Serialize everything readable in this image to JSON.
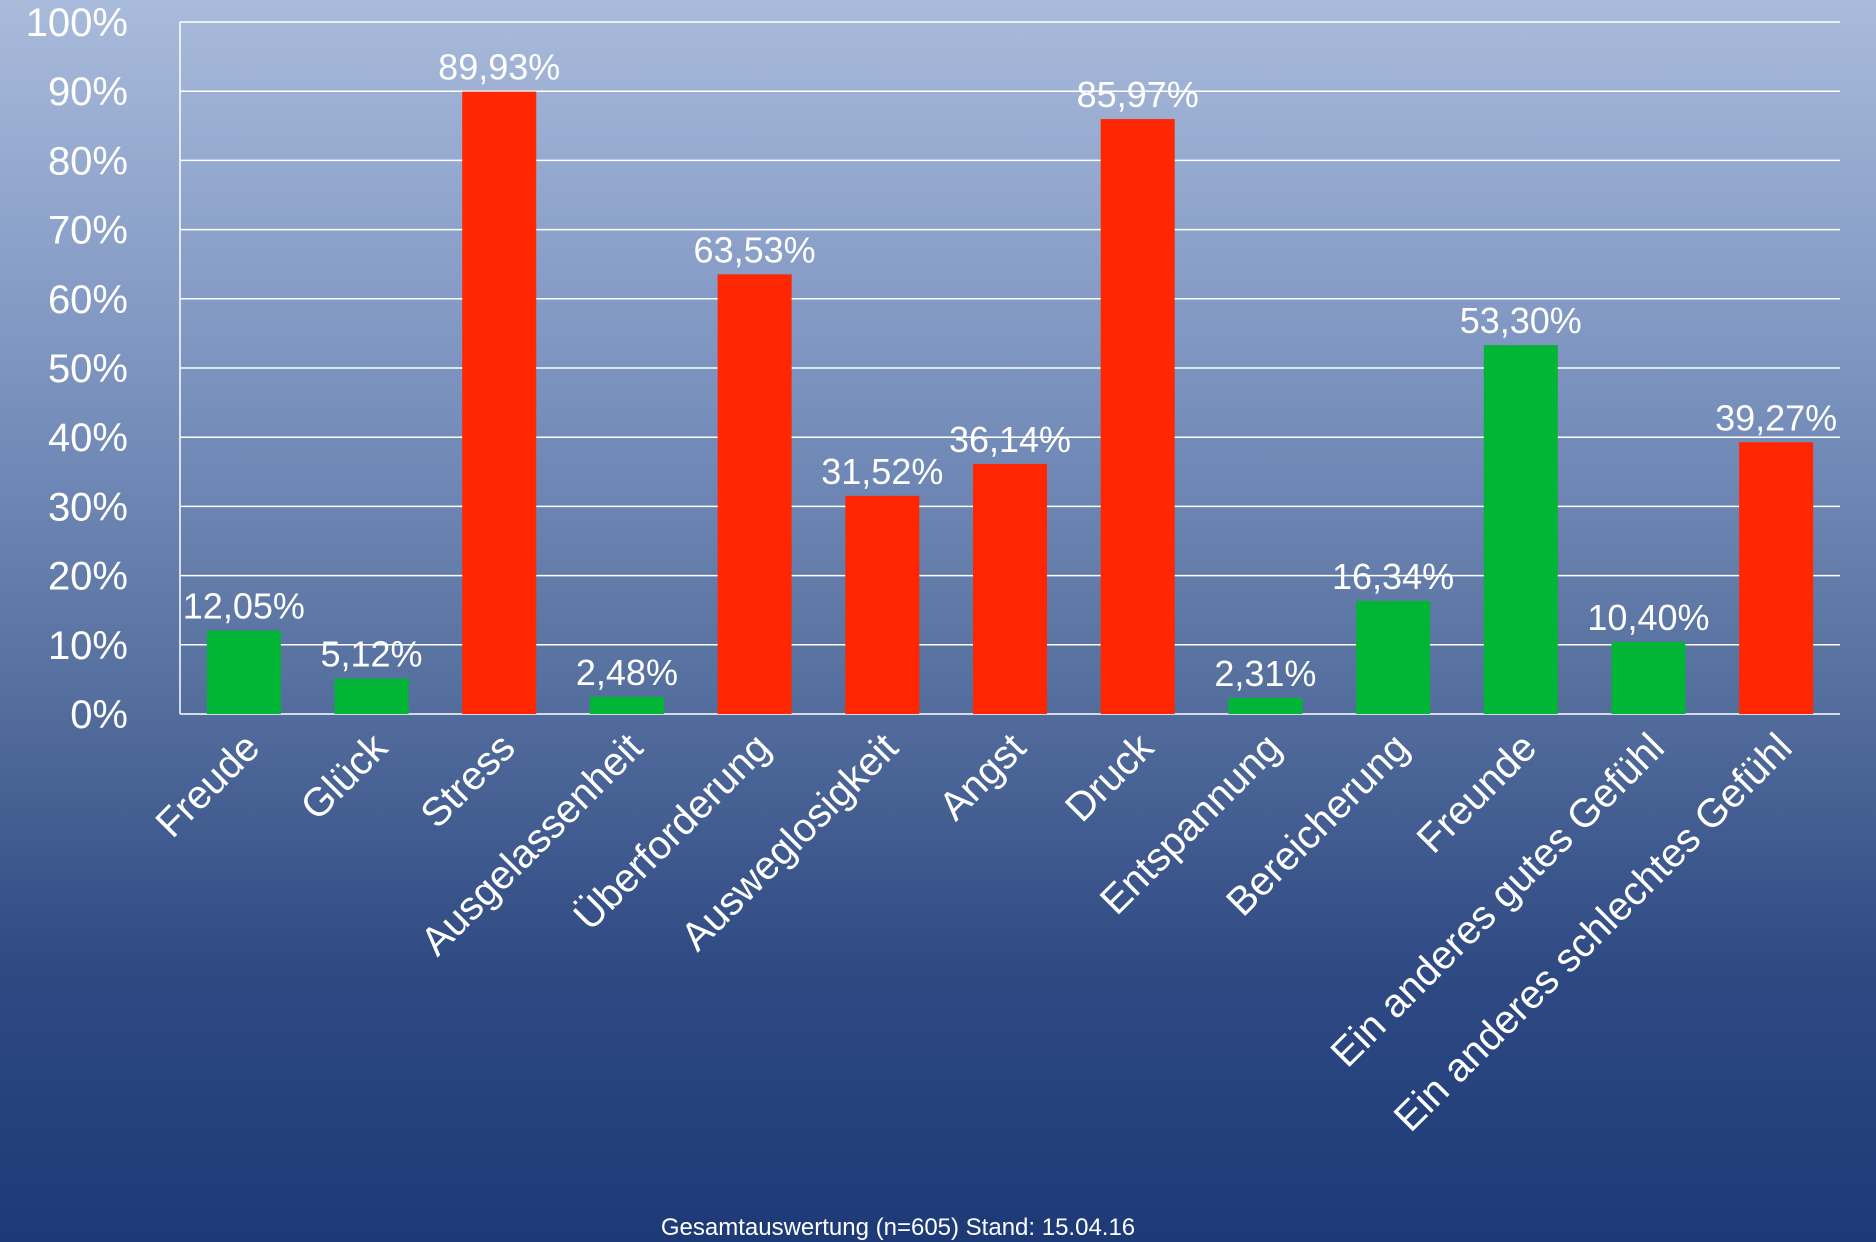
{
  "chart_data": {
    "type": "bar",
    "categories": [
      "Freude",
      "Glück",
      "Stress",
      "Ausgelassenheit",
      "Überforderung",
      "Ausweglosigkeit",
      "Angst",
      "Druck",
      "Entspannung",
      "Bereicherung",
      "Freunde",
      "Ein anderes gutes Gefühl",
      "Ein anderes schlechtes Gefühl"
    ],
    "values": [
      12.05,
      5.12,
      89.93,
      2.48,
      63.53,
      31.52,
      36.14,
      85.97,
      2.31,
      16.34,
      53.3,
      10.4,
      39.27
    ],
    "value_labels": [
      "12,05%",
      "5,12%",
      "89,93%",
      "2,48%",
      "63,53%",
      "31,52%",
      "36,14%",
      "85,97%",
      "2,31%",
      "16,34%",
      "53,30%",
      "10,40%",
      "39,27%"
    ],
    "bar_colors": [
      "#00b634",
      "#00b634",
      "#ff2600",
      "#00b634",
      "#ff2600",
      "#ff2600",
      "#ff2600",
      "#ff2600",
      "#00b634",
      "#00b634",
      "#00b634",
      "#00b634",
      "#ff2600"
    ],
    "y_ticks": [
      "0%",
      "10%",
      "20%",
      "30%",
      "40%",
      "50%",
      "60%",
      "70%",
      "80%",
      "90%",
      "100%"
    ],
    "ylim": [
      0,
      100
    ],
    "grid": true,
    "legend": "none",
    "title": "",
    "xlabel": "",
    "ylabel": ""
  },
  "footer": {
    "text": "Gesamtauswertung (n=605) Stand: 15.04.16"
  }
}
